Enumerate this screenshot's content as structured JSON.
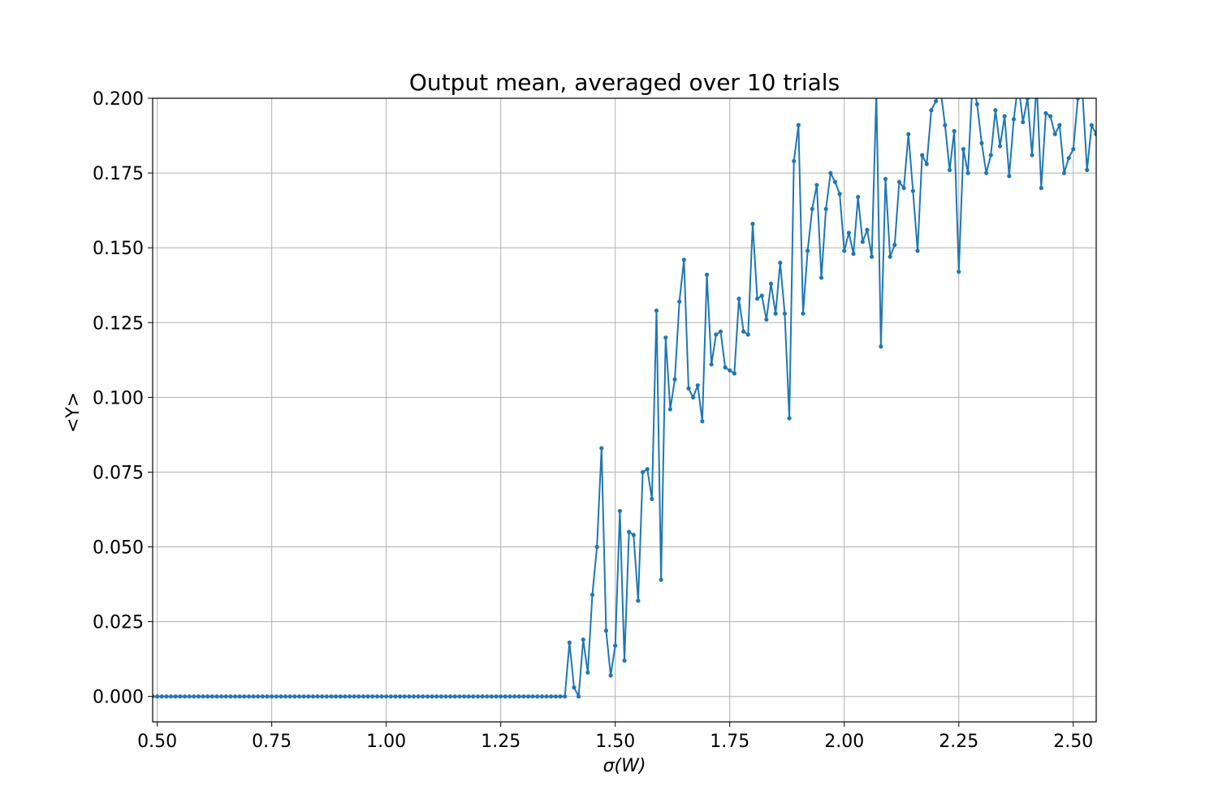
{
  "chart_data": {
    "type": "line",
    "title": "Output mean, averaged over 10 trials",
    "xlabel": "σ(W)",
    "ylabel": "<Y>",
    "xlim": [
      0.49,
      2.55
    ],
    "ylim": [
      -0.0085,
      0.2
    ],
    "grid": true,
    "marker": "dot",
    "colors": {
      "series": "#1f77b4"
    },
    "x_ticks": [
      0.5,
      0.75,
      1.0,
      1.25,
      1.5,
      1.75,
      2.0,
      2.25,
      2.5
    ],
    "x_tick_labels": [
      "0.50",
      "0.75",
      "1.00",
      "1.25",
      "1.50",
      "1.75",
      "2.00",
      "2.25",
      "2.50"
    ],
    "y_ticks": [
      0.0,
      0.025,
      0.05,
      0.075,
      0.1,
      0.125,
      0.15,
      0.175,
      0.2
    ],
    "y_tick_labels": [
      "0.000",
      "0.025",
      "0.050",
      "0.075",
      "0.100",
      "0.125",
      "0.150",
      "0.175",
      "0.200"
    ],
    "series": [
      {
        "x_start": 0.49,
        "x_step": 0.01,
        "values": [
          0,
          0,
          0,
          0,
          0,
          0,
          0,
          0,
          0,
          0,
          0,
          0,
          0,
          0,
          0,
          0,
          0,
          0,
          0,
          0,
          0,
          0,
          0,
          0,
          0,
          0,
          0,
          0,
          0,
          0,
          0,
          0,
          0,
          0,
          0,
          0,
          0,
          0,
          0,
          0,
          0,
          0,
          0,
          0,
          0,
          0,
          0,
          0,
          0,
          0,
          0,
          0,
          0,
          0,
          0,
          0,
          0,
          0,
          0,
          0,
          0,
          0,
          0,
          0,
          0,
          0,
          0,
          0,
          0,
          0,
          0,
          0,
          0,
          0,
          0,
          0,
          0,
          0,
          0,
          0,
          0,
          0,
          0,
          0,
          0,
          0,
          0,
          0,
          0,
          0,
          0,
          0.018,
          0.003,
          0.0,
          0.019,
          0.008,
          0.034,
          0.05,
          0.083,
          0.022,
          0.007,
          0.017,
          0.062,
          0.012,
          0.055,
          0.054,
          0.032,
          0.075,
          0.076,
          0.066,
          0.129,
          0.039,
          0.12,
          0.096,
          0.106,
          0.132,
          0.146,
          0.103,
          0.1,
          0.104,
          0.092,
          0.141,
          0.111,
          0.121,
          0.122,
          0.11,
          0.109,
          0.108,
          0.133,
          0.122,
          0.121,
          0.158,
          0.133,
          0.134,
          0.126,
          0.138,
          0.128,
          0.145,
          0.128,
          0.093,
          0.179,
          0.191,
          0.128,
          0.149,
          0.163,
          0.171,
          0.14,
          0.163,
          0.175,
          0.172,
          0.168,
          0.149,
          0.155,
          0.148,
          0.167,
          0.152,
          0.156,
          0.147,
          0.202,
          0.117,
          0.173,
          0.147,
          0.151,
          0.172,
          0.17,
          0.188,
          0.169,
          0.149,
          0.181,
          0.178,
          0.196,
          0.199,
          0.203,
          0.191,
          0.176,
          0.189,
          0.142,
          0.183,
          0.175,
          0.206,
          0.198,
          0.185,
          0.175,
          0.181,
          0.196,
          0.184,
          0.194,
          0.174,
          0.193,
          0.205,
          0.192,
          0.2,
          0.181,
          0.205,
          0.17,
          0.195,
          0.194,
          0.188,
          0.191,
          0.175,
          0.18,
          0.183,
          0.2,
          0.202,
          0.176,
          0.191,
          0.188
        ]
      }
    ]
  }
}
